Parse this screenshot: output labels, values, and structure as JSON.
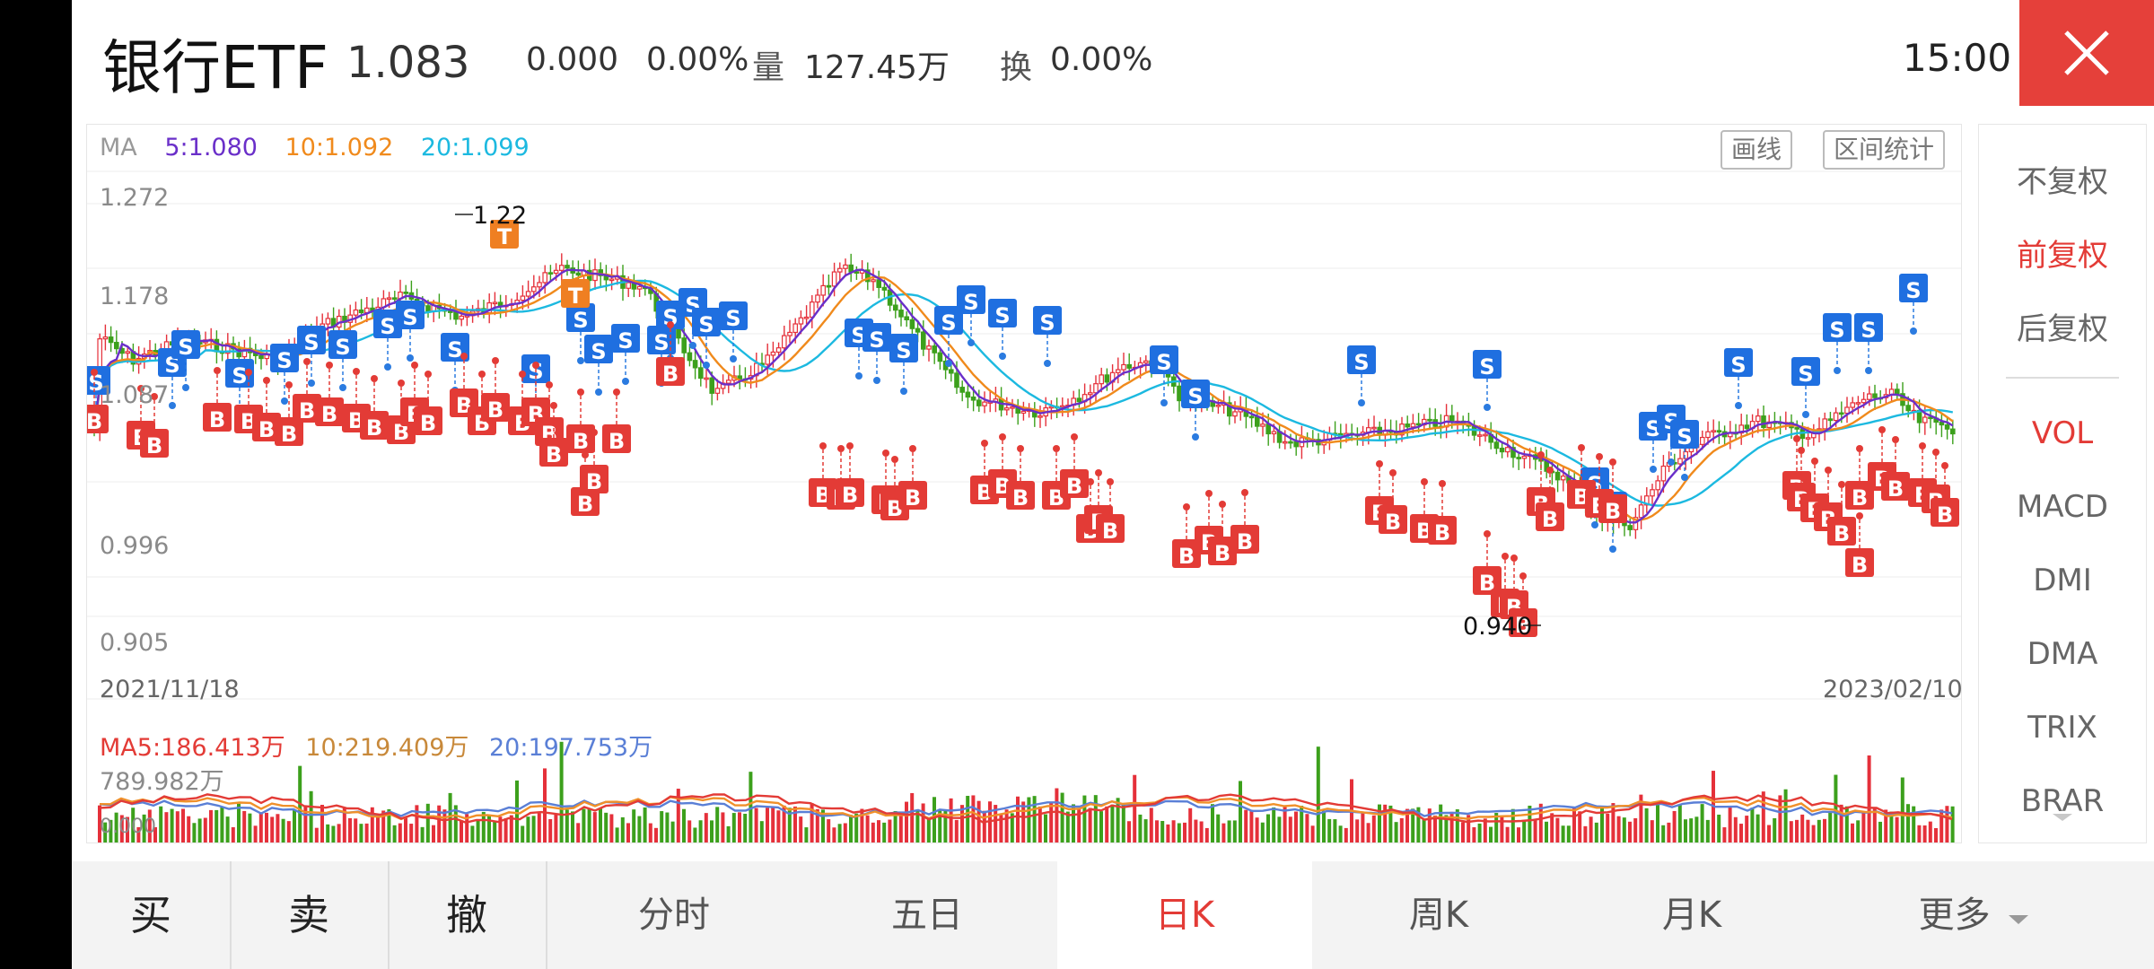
{
  "header": {
    "title": "银行ETF",
    "price": "1.083",
    "change": "0.000",
    "change_pct": "0.00%",
    "volume_label": "量",
    "volume": "127.45万",
    "turnover_label": "换",
    "turnover": "0.00%",
    "time": "15:00"
  },
  "chart": {
    "ma_label": "MA",
    "ma5": "5:1.080",
    "ma10": "10:1.092",
    "ma20": "20:1.099",
    "draw_line_button": "画线",
    "range_stats_button": "区间统计",
    "y_labels": [
      "1.272",
      "1.178",
      "1.087",
      "0.996",
      "0.905"
    ],
    "high_marker": "1.22",
    "low_marker": "0.940",
    "start_date": "2021/11/18",
    "end_date": "2023/02/10",
    "colors": {
      "up": "#e5303a",
      "down": "#3ca01c",
      "ma5": "#6a2fc9",
      "ma10": "#f08a1c",
      "ma20": "#1cb9e0"
    }
  },
  "volume": {
    "ma5": "MA5:186.413万",
    "ma10": "10:219.409万",
    "ma20": "20:197.753万",
    "max_label": "789.982万",
    "bottom_label": "0.000"
  },
  "sidebar": {
    "items": [
      "不复权",
      "前复权",
      "后复权",
      "VOL",
      "MACD",
      "DMI",
      "DMA",
      "TRIX",
      "BRAR"
    ],
    "active_adjust": "前复权",
    "active_indicator": "VOL"
  },
  "bottom_bar": {
    "buy": "买",
    "sell": "卖",
    "cancel": "撤",
    "tabs": [
      "分时",
      "五日",
      "日K",
      "周K",
      "月K",
      "更多"
    ],
    "active_tab": "日K"
  },
  "icons": {
    "close": "close-icon",
    "more_caret": "caret-down-icon",
    "scroll_caret": "chevron-down-icon"
  }
}
